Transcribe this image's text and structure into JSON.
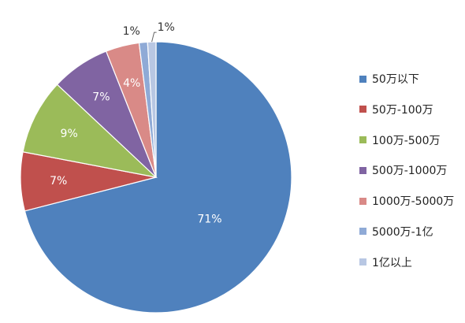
{
  "chart_data": {
    "type": "pie",
    "title": "",
    "categories": [
      "50万以下",
      "50万-100万",
      "100万-500万",
      "500万-1000万",
      "1000万-5000万",
      "5000万-1亿",
      "1亿以上"
    ],
    "values": [
      71,
      7,
      9,
      7,
      4,
      1,
      1
    ],
    "data_labels": [
      "71%",
      "7%",
      "9%",
      "7%",
      "4%",
      "1%",
      "1%"
    ],
    "colors": [
      "#4f81bd",
      "#c0504d",
      "#9bbb59",
      "#8064a2",
      "#d98a87",
      "#8faad6",
      "#b8c7e3"
    ],
    "start_angle": "12 o'clock",
    "direction": "clockwise",
    "legend": "right"
  }
}
